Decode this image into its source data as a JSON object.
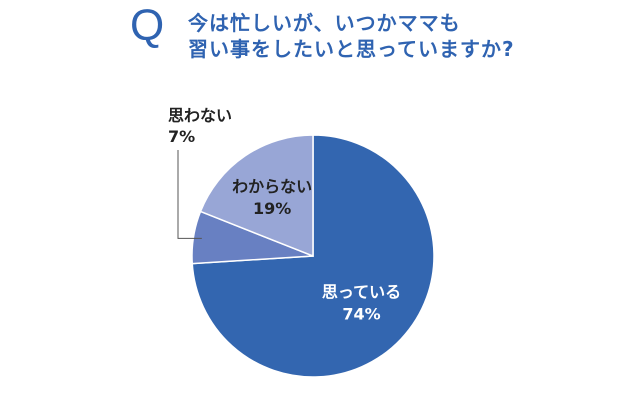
{
  "header": {
    "q_mark": "Q",
    "line1": "今は忙しいが、いつかママも",
    "line2": "習い事をしたいと思っていますか?"
  },
  "chart_data": {
    "type": "pie",
    "title": "今は忙しいが、いつかママも習い事をしたいと思っていますか?",
    "slices": [
      {
        "label": "思っている",
        "value": 74,
        "display": "74%",
        "color": "#3366b0",
        "text_color": "#ffffff",
        "label_position": "inside"
      },
      {
        "label": "思わない",
        "value": 7,
        "display": "7%",
        "color": "#6880c2",
        "text_color": "#222222",
        "label_position": "outside-left"
      },
      {
        "label": "わからない",
        "value": 19,
        "display": "19%",
        "color": "#98a6d6",
        "text_color": "#222222",
        "label_position": "inside"
      }
    ],
    "start": "12 o'clock",
    "direction": "clockwise",
    "legend": "none"
  }
}
